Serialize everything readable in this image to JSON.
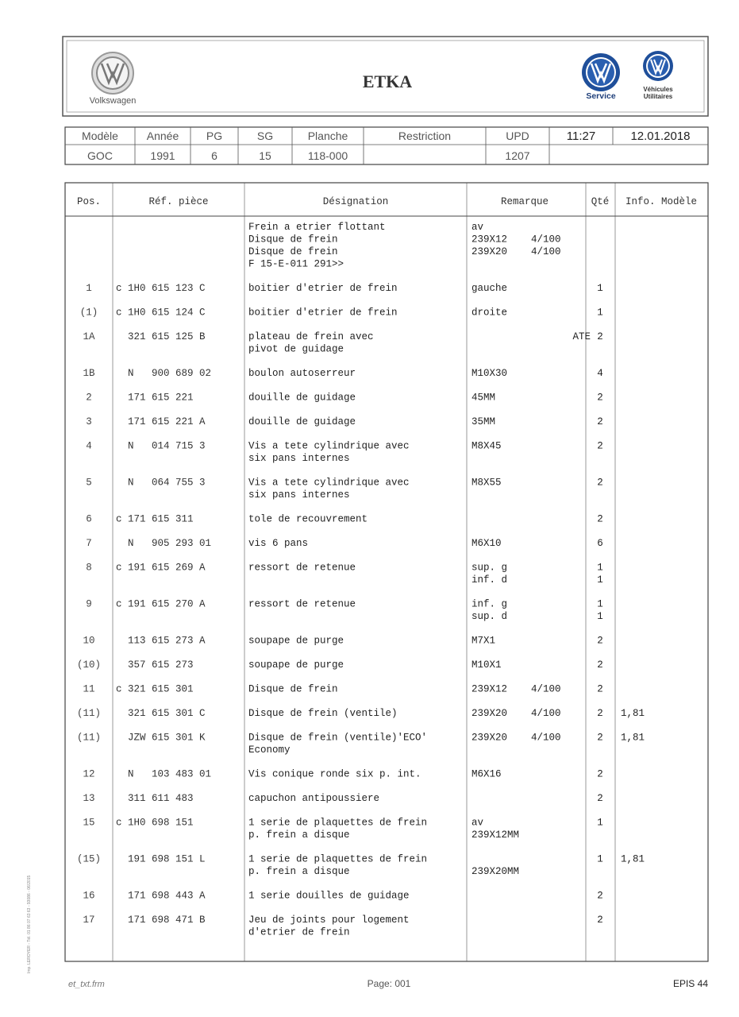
{
  "header": {
    "brand": "Volkswagen",
    "title": "ETKA",
    "service": "Service",
    "utility": [
      "Véhicules",
      "Utilitaires"
    ]
  },
  "info": {
    "fields": [
      {
        "label": "Modèle",
        "value": "GOC"
      },
      {
        "label": "Année",
        "value": "1991"
      },
      {
        "label": "PG",
        "value": "6"
      },
      {
        "label": "SG",
        "value": "15"
      },
      {
        "label": "Planche",
        "value": "118-000"
      },
      {
        "label": "Restriction"
      },
      {
        "label": "UPD",
        "value": "1207"
      }
    ],
    "time": "11:27",
    "date": "12.01.2018"
  },
  "table": {
    "columns": [
      "Pos.",
      "Réf. pièce",
      "Désignation",
      "Remarque",
      "Qté",
      "Info. Modèle"
    ],
    "rows": [
      {
        "designation": [
          "Frein a etrier flottant",
          "Disque de frein",
          "Disque de frein",
          "F 15-E-011 291>>"
        ],
        "remark": [
          "av",
          "239X12    4/100",
          "239X20    4/100"
        ]
      },
      {
        "pos": "1",
        "ref": "c 1H0 615 123 C",
        "designation": [
          "boitier d'etrier de frein"
        ],
        "remark": [
          "gauche"
        ],
        "qty": [
          "1"
        ]
      },
      {
        "pos": "(1)",
        "ref": "c 1H0 615 124 C",
        "designation": [
          "boitier d'etrier de frein"
        ],
        "remark": [
          "droite"
        ],
        "qty": [
          "1"
        ]
      },
      {
        "pos": "1A",
        "ref": "  321 615 125 B",
        "designation": [
          "plateau de frein avec",
          "pivot de guidage"
        ],
        "remark": [
          "                 ATE"
        ],
        "qty": [
          "2"
        ]
      },
      {
        "pos": "1B",
        "ref": "  N   900 689 02",
        "designation": [
          "boulon autoserreur"
        ],
        "remark": [
          "M10X30"
        ],
        "qty": [
          "4"
        ]
      },
      {
        "pos": "2",
        "ref": "  171 615 221",
        "designation": [
          "douille de guidage"
        ],
        "remark": [
          "45MM"
        ],
        "qty": [
          "2"
        ]
      },
      {
        "pos": "3",
        "ref": "  171 615 221 A",
        "designation": [
          "douille de guidage"
        ],
        "remark": [
          "35MM"
        ],
        "qty": [
          "2"
        ]
      },
      {
        "pos": "4",
        "ref": "  N   014 715 3",
        "designation": [
          "Vis a tete cylindrique avec",
          "six pans internes"
        ],
        "remark": [
          "M8X45"
        ],
        "qty": [
          "2"
        ]
      },
      {
        "pos": "5",
        "ref": "  N   064 755 3",
        "designation": [
          "Vis a tete cylindrique avec",
          "six pans internes"
        ],
        "remark": [
          "M8X55"
        ],
        "qty": [
          "2"
        ]
      },
      {
        "pos": "6",
        "ref": "c 171 615 311",
        "designation": [
          "tole de recouvrement"
        ],
        "qty": [
          "2"
        ]
      },
      {
        "pos": "7",
        "ref": "  N   905 293 01",
        "designation": [
          "vis 6 pans"
        ],
        "remark": [
          "M6X10"
        ],
        "qty": [
          "6"
        ]
      },
      {
        "pos": "8",
        "ref": "c 191 615 269 A",
        "designation": [
          "ressort de retenue"
        ],
        "remark": [
          "sup. g",
          "inf. d"
        ],
        "qty": [
          "1",
          "1"
        ]
      },
      {
        "pos": "9",
        "ref": "c 191 615 270 A",
        "designation": [
          "ressort de retenue"
        ],
        "remark": [
          "inf. g",
          "sup. d"
        ],
        "qty": [
          "1",
          "1"
        ]
      },
      {
        "pos": "10",
        "ref": "  113 615 273 A",
        "designation": [
          "soupape de purge"
        ],
        "remark": [
          "M7X1"
        ],
        "qty": [
          "2"
        ]
      },
      {
        "pos": "(10)",
        "ref": "  357 615 273",
        "designation": [
          "soupape de purge"
        ],
        "remark": [
          "M10X1"
        ],
        "qty": [
          "2"
        ]
      },
      {
        "pos": "11",
        "ref": "c 321 615 301",
        "designation": [
          "Disque de frein"
        ],
        "remark": [
          "239X12    4/100"
        ],
        "qty": [
          "2"
        ]
      },
      {
        "pos": "(11)",
        "ref": "  321 615 301 C",
        "designation": [
          "Disque de frein (ventile)"
        ],
        "remark": [
          "239X20    4/100"
        ],
        "qty": [
          "2"
        ],
        "info": "1,81"
      },
      {
        "pos": "(11)",
        "ref": "  JZW 615 301 K",
        "designation": [
          "Disque de frein (ventile)'ECO'",
          "Economy"
        ],
        "remark": [
          "239X20    4/100"
        ],
        "qty": [
          "2"
        ],
        "info": "1,81"
      },
      {
        "pos": "12",
        "ref": "  N   103 483 01",
        "designation": [
          "Vis conique ronde six p. int."
        ],
        "remark": [
          "M6X16"
        ],
        "qty": [
          "2"
        ]
      },
      {
        "pos": "13",
        "ref": "  311 611 483",
        "designation": [
          "capuchon antipoussiere"
        ],
        "qty": [
          "2"
        ]
      },
      {
        "pos": "15",
        "ref": "c 1H0 698 151",
        "designation": [
          "1 serie de plaquettes de frein",
          "p. frein a disque"
        ],
        "remark": [
          "av",
          "239X12MM"
        ],
        "qty": [
          "1"
        ]
      },
      {
        "pos": "(15)",
        "ref": "  191 698 151 L",
        "designation": [
          "1 serie de plaquettes de frein",
          "p. frein a disque"
        ],
        "remark": [
          null,
          "239X20MM"
        ],
        "qty": [
          "1"
        ],
        "info": "1,81"
      },
      {
        "pos": "16",
        "ref": "  171 698 443 A",
        "designation": [
          "1 serie douilles de guidage"
        ],
        "qty": [
          "2"
        ]
      },
      {
        "pos": "17",
        "ref": "  171 698 471 B",
        "designation": [
          "Jeu de joints pour logement",
          "d'etrier de frein"
        ],
        "qty": [
          "2"
        ]
      }
    ]
  },
  "footer": {
    "form": "et_txt.frm",
    "page": "Page: 001",
    "code": "EPIS 44",
    "printer": "Imp. LEROYER - Tél. 01 86 07 63 63 - 93086 - 06/2015"
  }
}
